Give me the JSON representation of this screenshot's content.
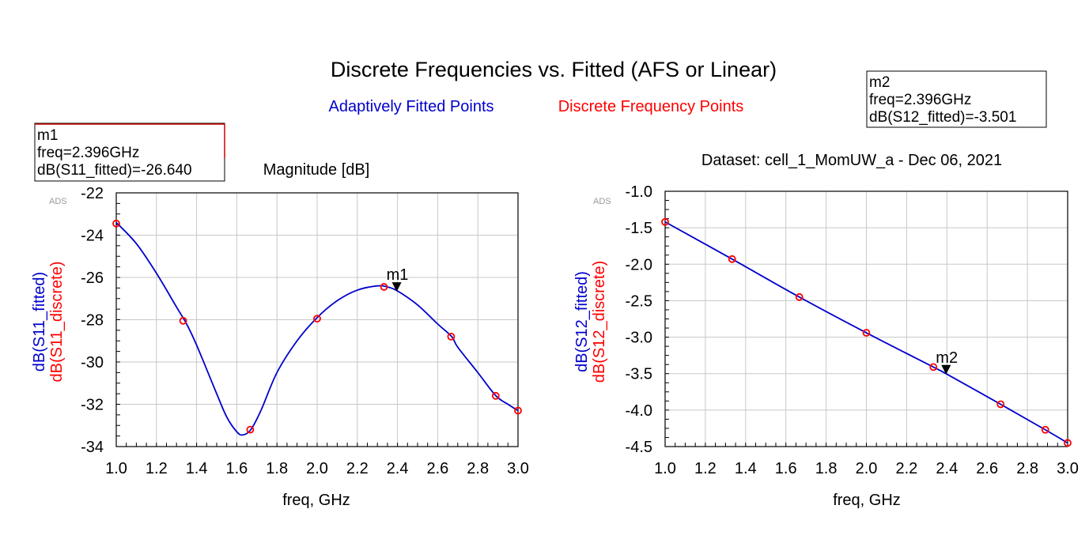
{
  "page": {
    "title": "Discrete Frequencies vs. Fitted (AFS or Linear)",
    "legend": {
      "fitted_label": "Adaptively Fitted Points",
      "discrete_label": "Discrete Frequency Points",
      "fitted_color": "#0000cc",
      "discrete_color": "#ff0000"
    }
  },
  "chart_data": [
    {
      "type": "line",
      "title": "Magnitude [dB]",
      "watermark": "ADS",
      "xlabel": "freq, GHz",
      "ylabel_fitted": "dB(S11_fitted)",
      "ylabel_discrete": "dB(S11_discrete)",
      "xlim": [
        1.0,
        3.0
      ],
      "ylim": [
        -34,
        -22
      ],
      "xticks": [
        "1.0",
        "1.2",
        "1.4",
        "1.6",
        "1.8",
        "2.0",
        "2.2",
        "2.4",
        "2.6",
        "2.8",
        "3.0"
      ],
      "yticks": [
        "-22",
        "-24",
        "-26",
        "-28",
        "-30",
        "-32",
        "-34"
      ],
      "grid": true,
      "series": [
        {
          "name": "dB(S11_fitted)",
          "style": "line",
          "x": [
            1.0,
            1.1,
            1.2,
            1.3,
            1.35,
            1.4,
            1.5,
            1.55,
            1.6,
            1.63,
            1.67,
            1.72,
            1.8,
            1.9,
            2.0,
            2.1,
            2.2,
            2.3,
            2.35,
            2.4,
            2.5,
            2.6,
            2.67,
            2.7,
            2.8,
            2.89,
            2.95,
            3.0
          ],
          "y": [
            -23.4,
            -24.4,
            -25.8,
            -27.4,
            -28.2,
            -29.2,
            -31.5,
            -32.6,
            -33.3,
            -33.45,
            -33.2,
            -32.3,
            -30.5,
            -29.0,
            -27.9,
            -27.1,
            -26.6,
            -26.4,
            -26.45,
            -26.64,
            -27.3,
            -28.2,
            -28.8,
            -29.3,
            -30.5,
            -31.6,
            -32.0,
            -32.3
          ]
        },
        {
          "name": "dB(S11_discrete)",
          "style": "marker",
          "x": [
            1.0,
            1.333,
            1.667,
            2.0,
            2.333,
            2.667,
            2.889,
            3.0
          ],
          "y": [
            -23.45,
            -28.05,
            -33.2,
            -27.95,
            -26.45,
            -28.8,
            -31.6,
            -32.3
          ]
        }
      ],
      "marker": {
        "name": "m1",
        "x": 2.396,
        "y": -26.64,
        "lines": [
          "m1",
          "freq=2.396GHz",
          "dB(S11_fitted)=-26.640"
        ]
      }
    },
    {
      "type": "line",
      "title": "Dataset: cell_1_MomUW_a - Dec 06, 2021",
      "watermark": "ADS",
      "xlabel": "freq, GHz",
      "ylabel_fitted": "dB(S12_fitted)",
      "ylabel_discrete": "dB(S12_discrete)",
      "xlim": [
        1.0,
        3.0
      ],
      "ylim": [
        -4.5,
        -1.0
      ],
      "xticks": [
        "1.0",
        "1.2",
        "1.4",
        "1.6",
        "1.8",
        "2.0",
        "2.2",
        "2.4",
        "2.6",
        "2.8",
        "3.0"
      ],
      "yticks": [
        "-1.0",
        "-1.5",
        "-2.0",
        "-2.5",
        "-3.0",
        "-3.5",
        "-4.0",
        "-4.5"
      ],
      "grid": true,
      "series": [
        {
          "name": "dB(S12_fitted)",
          "style": "line",
          "x": [
            1.0,
            1.333,
            1.667,
            2.0,
            2.333,
            2.396,
            2.667,
            2.889,
            3.0
          ],
          "y": [
            -1.42,
            -1.93,
            -2.45,
            -2.94,
            -3.41,
            -3.501,
            -3.92,
            -4.27,
            -4.45
          ]
        },
        {
          "name": "dB(S12_discrete)",
          "style": "marker",
          "x": [
            1.0,
            1.333,
            1.667,
            2.0,
            2.333,
            2.667,
            2.889,
            3.0
          ],
          "y": [
            -1.42,
            -1.93,
            -2.45,
            -2.94,
            -3.41,
            -3.92,
            -4.27,
            -4.45
          ]
        }
      ],
      "marker": {
        "name": "m2",
        "x": 2.396,
        "y": -3.501,
        "lines": [
          "m2",
          "freq=2.396GHz",
          "dB(S12_fitted)=-3.501"
        ]
      }
    }
  ]
}
